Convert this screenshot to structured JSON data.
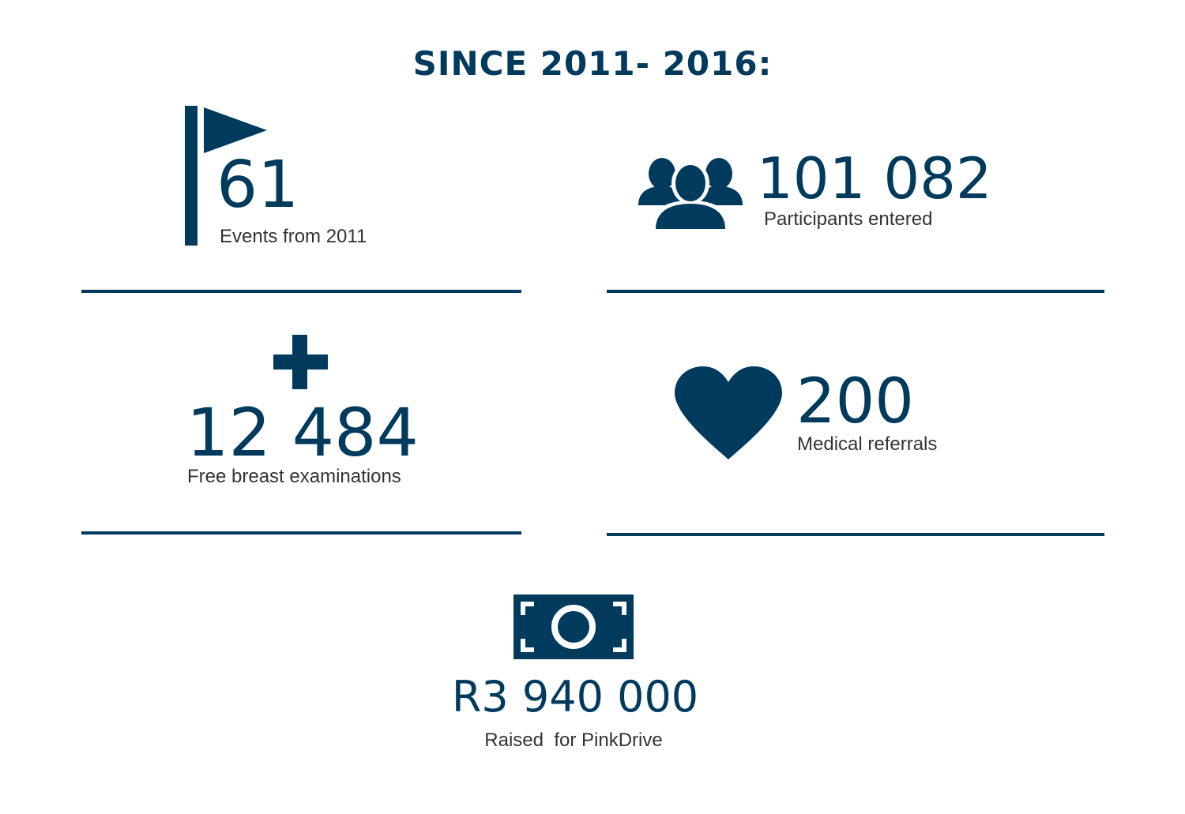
{
  "heading": "SINCE 2011- 2016:",
  "stats": {
    "events": {
      "value": "61",
      "label": "Events from 2011",
      "icon": "flag-icon"
    },
    "participants": {
      "value": "101 082",
      "label": "Participants entered",
      "icon": "people-icon"
    },
    "examinations": {
      "value": "12 484",
      "label": "Free breast examinations",
      "icon": "plus-icon"
    },
    "referrals": {
      "value": "200",
      "label": "Medical referrals",
      "icon": "heart-icon"
    },
    "raised": {
      "value": "R3 940 000",
      "label": "Raised  for PinkDrive",
      "icon": "money-icon"
    }
  },
  "colors": {
    "accent": "#003a5d",
    "label_text": "#333333",
    "background": "#ffffff"
  }
}
